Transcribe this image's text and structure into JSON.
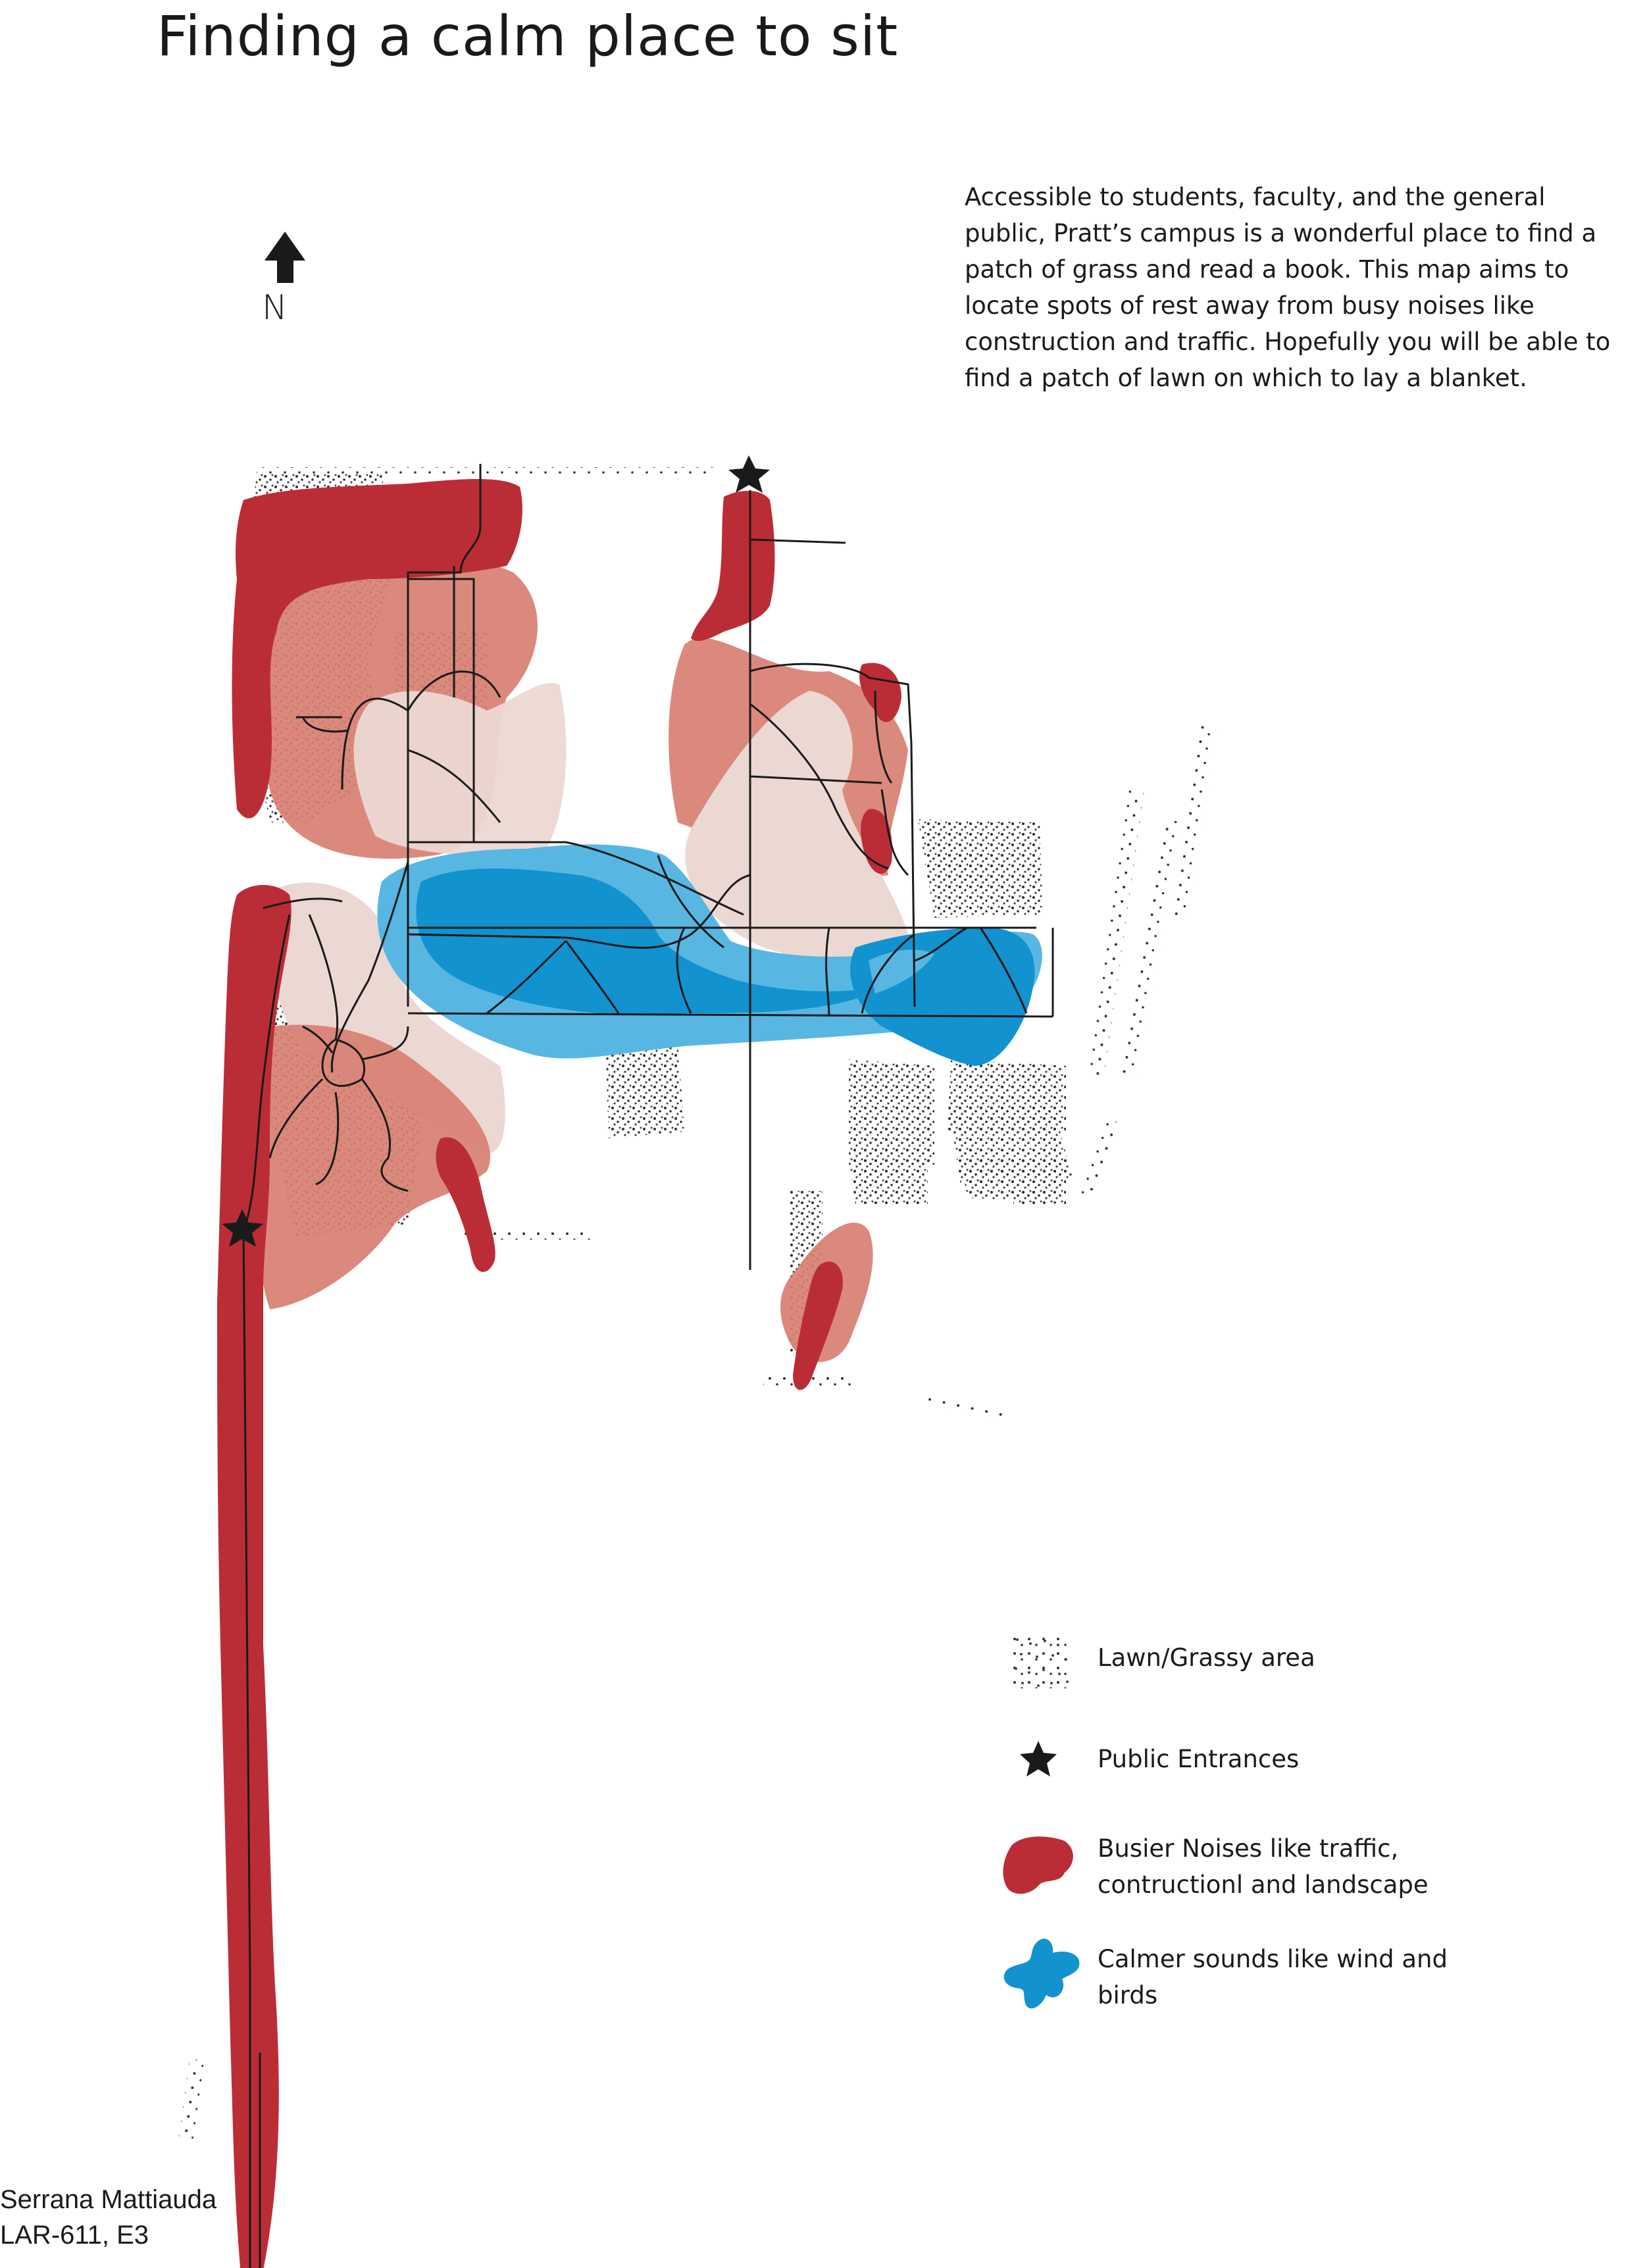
{
  "title": "Finding a calm place to sit",
  "intro": "Accessible to students, faculty, and the general public, Pratt’s campus is a wonderful place to find a patch of grass and read a book. This map aims to locate spots of rest away from busy noises like construction and traffic. Hopefully you will be able to find a patch of lawn on which to lay a blanket.",
  "north_label": "N",
  "legend": {
    "lawn": "Lawn/Grassy area",
    "entrances": "Public Entrances",
    "busy": "Busier Noises like traffic, contructionl and landscape",
    "calm": "Calmer sounds like wind and birds"
  },
  "credit": {
    "author": "Serrana Mattiauda",
    "course": "LAR-611, E3"
  },
  "colors": {
    "busy": "#bb2d36",
    "medium": "#d87f72",
    "light": "#ecd8d3",
    "calm": "#1292cf",
    "calm_light": "#57b7e2",
    "lines": "#1a1a1a"
  },
  "icons": {
    "north_arrow": "north-arrow-icon",
    "entrance": "star-icon"
  }
}
